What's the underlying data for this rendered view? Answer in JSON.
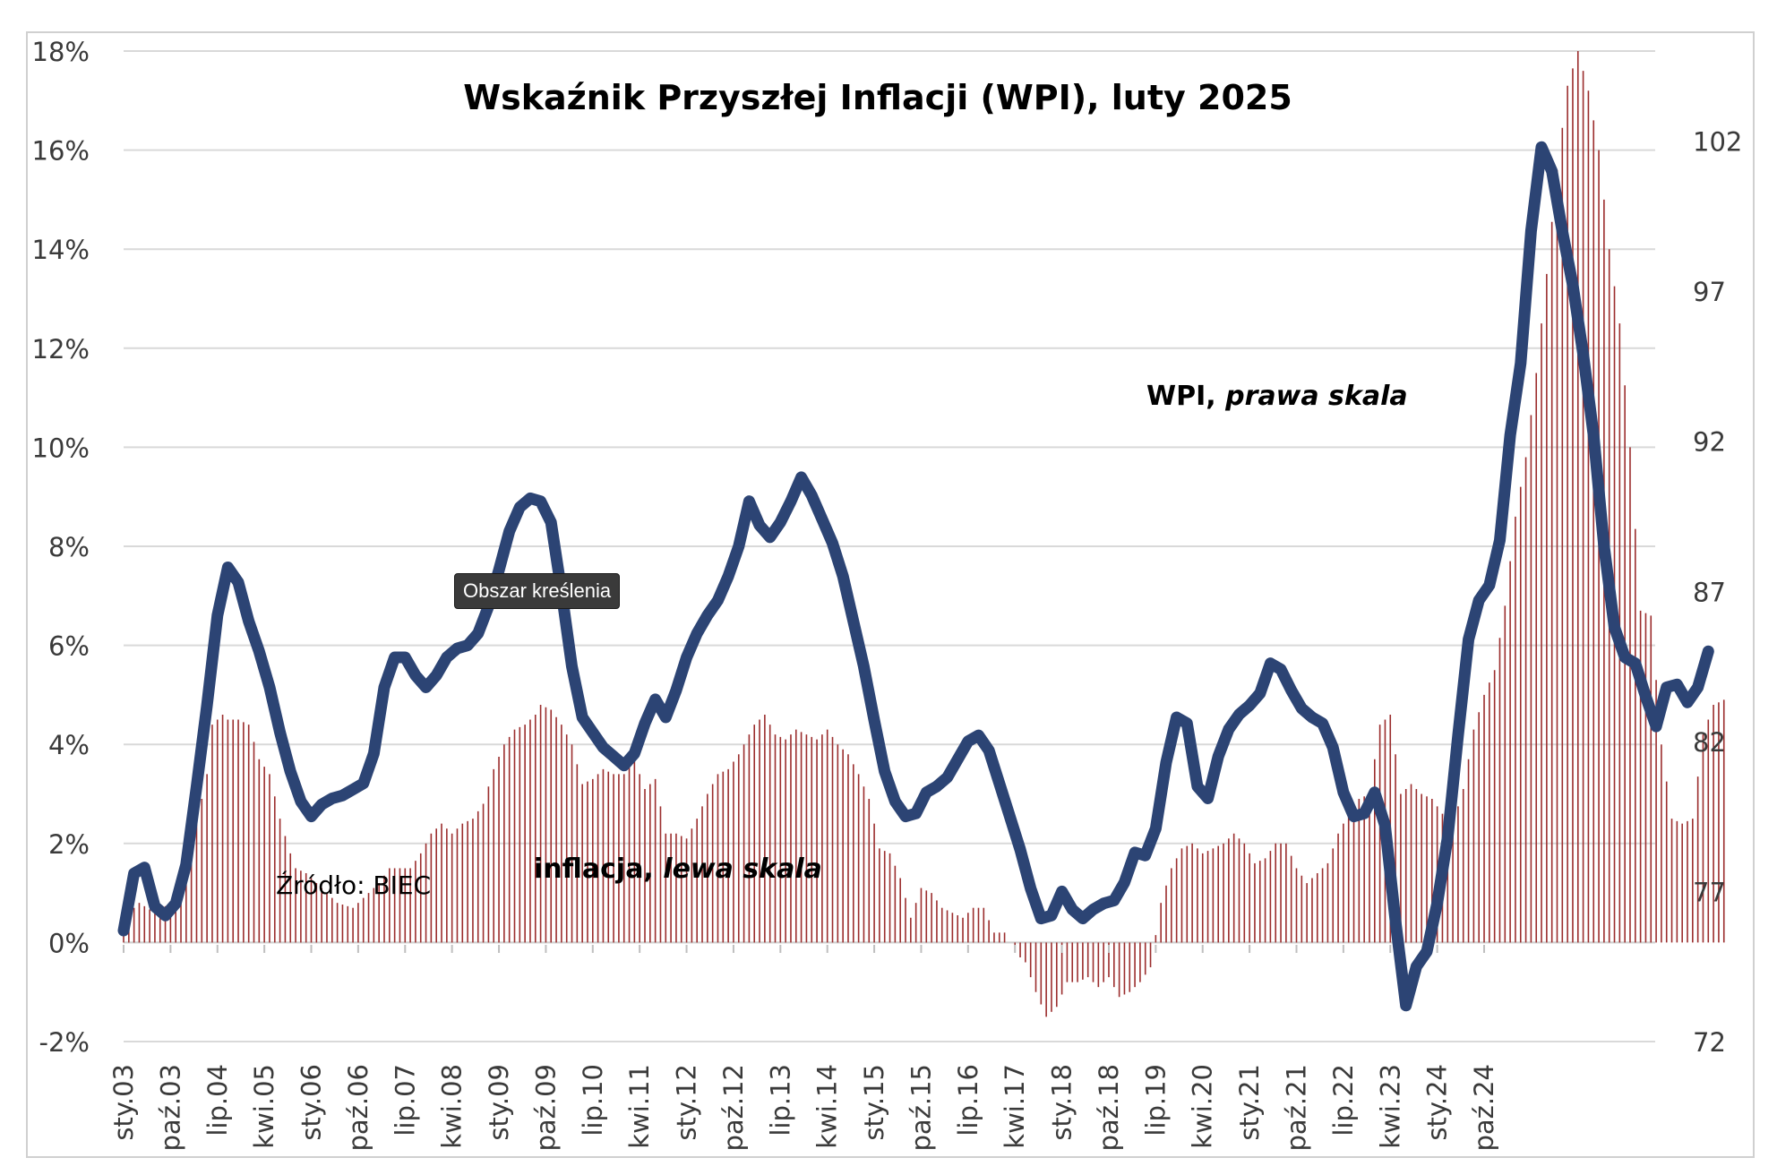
{
  "chart_data": {
    "type": "line",
    "title": "Wskaźnik Przyszłej Inflacji (WPI), luty 2025",
    "source_label": "Źródło: BIEC",
    "tooltip": "Obszar kreślenia",
    "annotations": {
      "wpi_main": "WPI, ",
      "wpi_italic": "prawa skala",
      "infl_main": "inflacja, ",
      "infl_italic": "lewa skala"
    },
    "y_left": {
      "range": [
        -2,
        18
      ],
      "ticks": [
        "-2%",
        "0%",
        "2%",
        "4%",
        "6%",
        "8%",
        "10%",
        "12%",
        "14%",
        "16%",
        "18%"
      ]
    },
    "y_right": {
      "range": [
        72,
        105
      ],
      "ticks": [
        "72",
        "77",
        "82",
        "87",
        "92",
        "97",
        "102"
      ]
    },
    "x_ticks": [
      "sty.03",
      "paź.03",
      "lip.04",
      "kwi.05",
      "sty.06",
      "paź.06",
      "lip.07",
      "kwi.08",
      "sty.09",
      "paź.09",
      "lip.10",
      "kwi.11",
      "sty.12",
      "paź.12",
      "lip.13",
      "kwi.14",
      "sty.15",
      "paź.15",
      "lip.16",
      "kwi.17",
      "sty.18",
      "paź.18",
      "lip.19",
      "kwi.20",
      "sty.21",
      "paź.21",
      "lip.22",
      "kwi.23",
      "sty.24",
      "paź.24"
    ],
    "x_start": "2003-01",
    "grid": true,
    "colors": {
      "wpi": "#2c4474",
      "inflation": "#9b2d2d",
      "grid": "#d9d9d9"
    },
    "series": [
      {
        "name": "WPI",
        "axis": "right",
        "style": "line",
        "points": [
          [
            0,
            75.7
          ],
          [
            2,
            77.6
          ],
          [
            4,
            77.8
          ],
          [
            6,
            76.5
          ],
          [
            8,
            76.2
          ],
          [
            10,
            76.6
          ],
          [
            12,
            77.9
          ],
          [
            14,
            80.5
          ],
          [
            16,
            83.2
          ],
          [
            18,
            86.2
          ],
          [
            20,
            87.8
          ],
          [
            22,
            87.3
          ],
          [
            24,
            86
          ],
          [
            26,
            85
          ],
          [
            28,
            83.8
          ],
          [
            30,
            82.3
          ],
          [
            32,
            81
          ],
          [
            34,
            80
          ],
          [
            36,
            79.5
          ],
          [
            38,
            79.9
          ],
          [
            40,
            80.1
          ],
          [
            42,
            80.2
          ],
          [
            44,
            80.4
          ],
          [
            46,
            80.6
          ],
          [
            48,
            81.6
          ],
          [
            50,
            83.8
          ],
          [
            52,
            84.8
          ],
          [
            54,
            84.8
          ],
          [
            56,
            84.2
          ],
          [
            58,
            83.8
          ],
          [
            60,
            84.2
          ],
          [
            62,
            84.8
          ],
          [
            64,
            85.1
          ],
          [
            66,
            85.2
          ],
          [
            68,
            85.6
          ],
          [
            70,
            86.5
          ],
          [
            72,
            87.7
          ],
          [
            74,
            89
          ],
          [
            76,
            89.8
          ],
          [
            78,
            90.1
          ],
          [
            80,
            90
          ],
          [
            82,
            89.3
          ],
          [
            84,
            87
          ],
          [
            86,
            84.5
          ],
          [
            88,
            82.8
          ],
          [
            90,
            82.3
          ],
          [
            92,
            81.8
          ],
          [
            94,
            81.5
          ],
          [
            96,
            81.2
          ],
          [
            98,
            81.6
          ],
          [
            100,
            82.6
          ],
          [
            102,
            83.4
          ],
          [
            104,
            82.8
          ],
          [
            106,
            83.7
          ],
          [
            108,
            84.8
          ],
          [
            110,
            85.6
          ],
          [
            112,
            86.2
          ],
          [
            114,
            86.7
          ],
          [
            116,
            87.5
          ],
          [
            118,
            88.5
          ],
          [
            120,
            90
          ],
          [
            122,
            89.2
          ],
          [
            124,
            88.8
          ],
          [
            126,
            89.3
          ],
          [
            128,
            90
          ],
          [
            130,
            90.8
          ],
          [
            132,
            90.2
          ],
          [
            134,
            89.4
          ],
          [
            136,
            88.6
          ],
          [
            138,
            87.5
          ],
          [
            140,
            86
          ],
          [
            142,
            84.5
          ],
          [
            144,
            82.7
          ],
          [
            146,
            81
          ],
          [
            148,
            80
          ],
          [
            150,
            79.5
          ],
          [
            152,
            79.6
          ],
          [
            154,
            80.3
          ],
          [
            156,
            80.5
          ],
          [
            158,
            80.8
          ],
          [
            160,
            81.4
          ],
          [
            162,
            82
          ],
          [
            164,
            82.2
          ],
          [
            166,
            81.7
          ],
          [
            168,
            80.6
          ],
          [
            170,
            79.5
          ],
          [
            172,
            78.4
          ],
          [
            174,
            77.1
          ],
          [
            176,
            76.1
          ],
          [
            178,
            76.2
          ],
          [
            180,
            77
          ],
          [
            182,
            76.4
          ],
          [
            184,
            76.1
          ],
          [
            186,
            76.4
          ],
          [
            188,
            76.6
          ],
          [
            190,
            76.7
          ],
          [
            192,
            77.3
          ],
          [
            194,
            78.3
          ],
          [
            196,
            78.2
          ],
          [
            198,
            79.1
          ],
          [
            200,
            81.3
          ],
          [
            202,
            82.8
          ],
          [
            204,
            82.6
          ],
          [
            206,
            80.5
          ],
          [
            208,
            80.1
          ],
          [
            210,
            81.5
          ],
          [
            212,
            82.4
          ],
          [
            214,
            82.9
          ],
          [
            216,
            83.2
          ],
          [
            218,
            83.6
          ],
          [
            220,
            84.6
          ],
          [
            222,
            84.4
          ],
          [
            224,
            83.7
          ],
          [
            226,
            83.1
          ],
          [
            228,
            82.8
          ],
          [
            230,
            82.6
          ],
          [
            232,
            81.8
          ],
          [
            234,
            80.3
          ],
          [
            236,
            79.5
          ],
          [
            238,
            79.6
          ],
          [
            240,
            80.3
          ],
          [
            242,
            79.2
          ],
          [
            244,
            76
          ],
          [
            246,
            73.2
          ],
          [
            248,
            74.5
          ],
          [
            250,
            75
          ],
          [
            252,
            76.6
          ],
          [
            254,
            78.8
          ],
          [
            256,
            82.2
          ],
          [
            258,
            85.4
          ],
          [
            260,
            86.7
          ],
          [
            262,
            87.2
          ],
          [
            264,
            88.7
          ],
          [
            266,
            92.2
          ],
          [
            268,
            94.6
          ],
          [
            270,
            99
          ],
          [
            272,
            101.8
          ],
          [
            274,
            101
          ],
          [
            276,
            99
          ],
          [
            278,
            97.2
          ],
          [
            280,
            94.9
          ],
          [
            282,
            92.2
          ],
          [
            284,
            88.5
          ],
          [
            286,
            85.8
          ],
          [
            288,
            84.8
          ],
          [
            290,
            84.6
          ],
          [
            292,
            83.5
          ],
          [
            294,
            82.5
          ],
          [
            296,
            83.8
          ],
          [
            298,
            83.9
          ],
          [
            300,
            83.3
          ],
          [
            302,
            83.8
          ],
          [
            304,
            85
          ]
        ]
      },
      {
        "name": "inflacja",
        "axis": "left",
        "style": "bar",
        "points": [
          [
            0,
            0.5
          ],
          [
            3,
            0.8
          ],
          [
            6,
            0.6
          ],
          [
            9,
            0.8
          ],
          [
            11,
            1.5
          ],
          [
            13,
            1.6
          ],
          [
            14,
            2.4
          ],
          [
            16,
            3.4
          ],
          [
            17,
            4.4
          ],
          [
            19,
            4.6
          ],
          [
            20,
            4.5
          ],
          [
            22,
            4.5
          ],
          [
            24,
            4.4
          ],
          [
            26,
            3.7
          ],
          [
            28,
            3.4
          ],
          [
            30,
            2.5
          ],
          [
            32,
            1.8
          ],
          [
            33,
            1.5
          ],
          [
            35,
            1.4
          ],
          [
            37,
            1.2
          ],
          [
            39,
            1
          ],
          [
            41,
            0.8
          ],
          [
            44,
            0.7
          ],
          [
            47,
            1
          ],
          [
            49,
            1.2
          ],
          [
            51,
            1.5
          ],
          [
            53,
            1.5
          ],
          [
            55,
            1.5
          ],
          [
            57,
            1.8
          ],
          [
            59,
            2.2
          ],
          [
            61,
            2.4
          ],
          [
            63,
            2.2
          ],
          [
            65,
            2.4
          ],
          [
            67,
            2.5
          ],
          [
            69,
            2.8
          ],
          [
            71,
            3.5
          ],
          [
            73,
            4
          ],
          [
            75,
            4.3
          ],
          [
            77,
            4.4
          ],
          [
            79,
            4.6
          ],
          [
            80,
            4.8
          ],
          [
            82,
            4.7
          ],
          [
            84,
            4.4
          ],
          [
            86,
            4
          ],
          [
            88,
            3.2
          ],
          [
            90,
            3.3
          ],
          [
            92,
            3.5
          ],
          [
            94,
            3.4
          ],
          [
            96,
            3.4
          ],
          [
            98,
            3.7
          ],
          [
            100,
            3.1
          ],
          [
            102,
            3.3
          ],
          [
            104,
            2.2
          ],
          [
            106,
            2.2
          ],
          [
            108,
            2.1
          ],
          [
            110,
            2.5
          ],
          [
            112,
            3
          ],
          [
            114,
            3.4
          ],
          [
            116,
            3.5
          ],
          [
            118,
            3.8
          ],
          [
            119,
            4
          ],
          [
            121,
            4.4
          ],
          [
            123,
            4.6
          ],
          [
            125,
            4.2
          ],
          [
            127,
            4.1
          ],
          [
            129,
            4.3
          ],
          [
            131,
            4.2
          ],
          [
            133,
            4.1
          ],
          [
            135,
            4.3
          ],
          [
            137,
            4
          ],
          [
            139,
            3.8
          ],
          [
            141,
            3.4
          ],
          [
            143,
            2.9
          ],
          [
            145,
            1.9
          ],
          [
            147,
            1.8
          ],
          [
            149,
            1.3
          ],
          [
            151,
            0.5
          ],
          [
            153,
            1.1
          ],
          [
            155,
            1
          ],
          [
            157,
            0.7
          ],
          [
            159,
            0.6
          ],
          [
            161,
            0.5
          ],
          [
            163,
            0.7
          ],
          [
            165,
            0.7
          ],
          [
            167,
            0.2
          ],
          [
            169,
            0.2
          ],
          [
            171,
            -0.2
          ],
          [
            173,
            -0.4
          ],
          [
            175,
            -1
          ],
          [
            177,
            -1.5
          ],
          [
            179,
            -1.3
          ],
          [
            181,
            -0.8
          ],
          [
            183,
            -0.8
          ],
          [
            185,
            -0.7
          ],
          [
            187,
            -0.9
          ],
          [
            189,
            -0.7
          ],
          [
            191,
            -1.1
          ],
          [
            193,
            -1
          ],
          [
            195,
            -0.8
          ],
          [
            197,
            -0.5
          ],
          [
            199,
            0.8
          ],
          [
            201,
            1.5
          ],
          [
            203,
            1.9
          ],
          [
            205,
            2
          ],
          [
            207,
            1.8
          ],
          [
            209,
            1.9
          ],
          [
            211,
            2
          ],
          [
            213,
            2.2
          ],
          [
            215,
            2
          ],
          [
            217,
            1.6
          ],
          [
            219,
            1.7
          ],
          [
            221,
            2
          ],
          [
            223,
            2
          ],
          [
            225,
            1.5
          ],
          [
            227,
            1.2
          ],
          [
            229,
            1.4
          ],
          [
            231,
            1.6
          ],
          [
            233,
            2.2
          ],
          [
            235,
            2.6
          ],
          [
            237,
            2.9
          ],
          [
            239,
            3
          ],
          [
            241,
            4.4
          ],
          [
            243,
            4.6
          ],
          [
            245,
            3
          ],
          [
            247,
            3.2
          ],
          [
            249,
            3
          ],
          [
            251,
            2.9
          ],
          [
            253,
            2.6
          ],
          [
            255,
            2.4
          ],
          [
            257,
            3.1
          ],
          [
            259,
            4.3
          ],
          [
            261,
            5
          ],
          [
            263,
            5.5
          ],
          [
            265,
            6.8
          ],
          [
            267,
            8.6
          ],
          [
            269,
            9.8
          ],
          [
            271,
            11.5
          ],
          [
            273,
            13.5
          ],
          [
            275,
            15.6
          ],
          [
            277,
            17.3
          ],
          [
            279,
            18
          ],
          [
            281,
            17.2
          ],
          [
            283,
            16
          ],
          [
            285,
            14
          ],
          [
            287,
            12.5
          ],
          [
            289,
            10
          ],
          [
            291,
            6.7
          ],
          [
            293,
            6.6
          ],
          [
            295,
            4
          ],
          [
            297,
            2.5
          ],
          [
            299,
            2.4
          ],
          [
            301,
            2.5
          ],
          [
            303,
            4.2
          ],
          [
            305,
            4.8
          ],
          [
            307,
            4.9
          ]
        ]
      }
    ]
  }
}
